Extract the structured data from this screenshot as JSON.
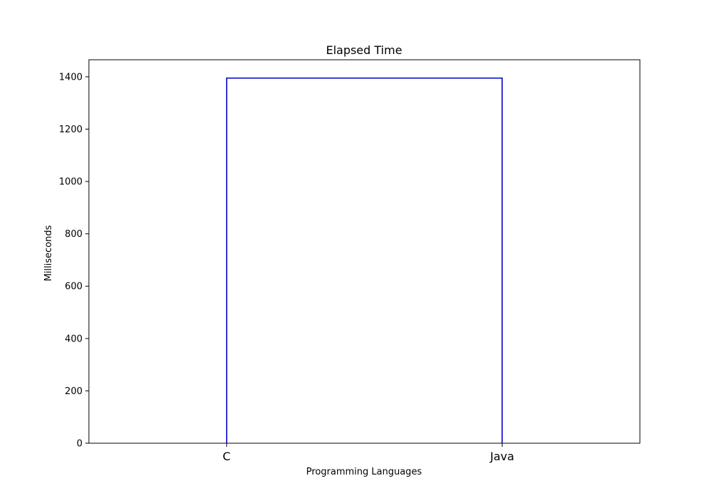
{
  "chart_data": {
    "type": "dendrogram",
    "title": "Elapsed Time",
    "xlabel": "Programming Languages",
    "ylabel": "Milliseconds",
    "leaves": [
      "C",
      "Java"
    ],
    "merges": [
      {
        "left": "C",
        "right": "Java",
        "height": 1395
      }
    ],
    "ylim": [
      0,
      1465
    ],
    "yticks": [
      0,
      200,
      400,
      600,
      800,
      1000,
      1200,
      1400
    ],
    "grid": false,
    "line_color": "#0000cc"
  }
}
